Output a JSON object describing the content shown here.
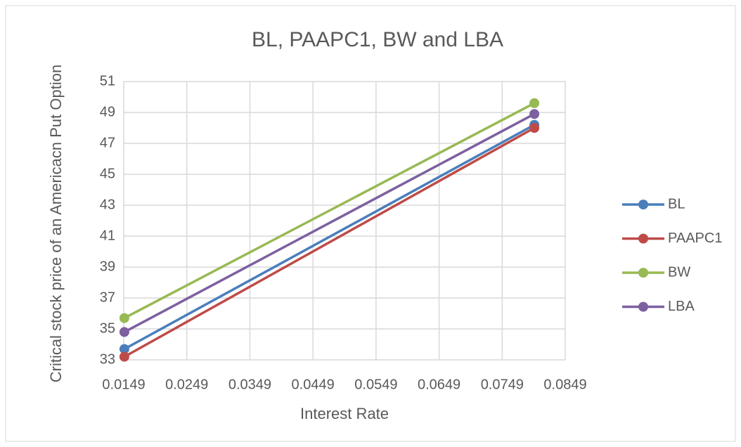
{
  "chart_data": {
    "type": "line",
    "title": "BL, PAAPC1, BW and LBA",
    "x_label": "Interest Rate",
    "y_label": "Critical stock price of an Americacn Put Option",
    "x": [
      0.015,
      0.08
    ],
    "series": [
      {
        "name": "BL",
        "color": "#4a7ebb",
        "values": [
          33.7,
          48.2
        ]
      },
      {
        "name": "PAAPC1",
        "color": "#be4b48",
        "values": [
          33.2,
          48.0
        ]
      },
      {
        "name": "BW",
        "color": "#98b954",
        "values": [
          35.7,
          49.6
        ]
      },
      {
        "name": "LBA",
        "color": "#7d60a0",
        "values": [
          34.8,
          48.9
        ]
      }
    ],
    "xlim": [
      0.0149,
      0.0849
    ],
    "xticks": [
      0.0149,
      0.0249,
      0.0349,
      0.0449,
      0.0549,
      0.0649,
      0.0749,
      0.0849
    ],
    "ylim": [
      33,
      51
    ],
    "yticks": [
      33,
      35,
      37,
      39,
      41,
      43,
      45,
      47,
      49,
      51
    ],
    "grid": true,
    "legend": "right"
  }
}
